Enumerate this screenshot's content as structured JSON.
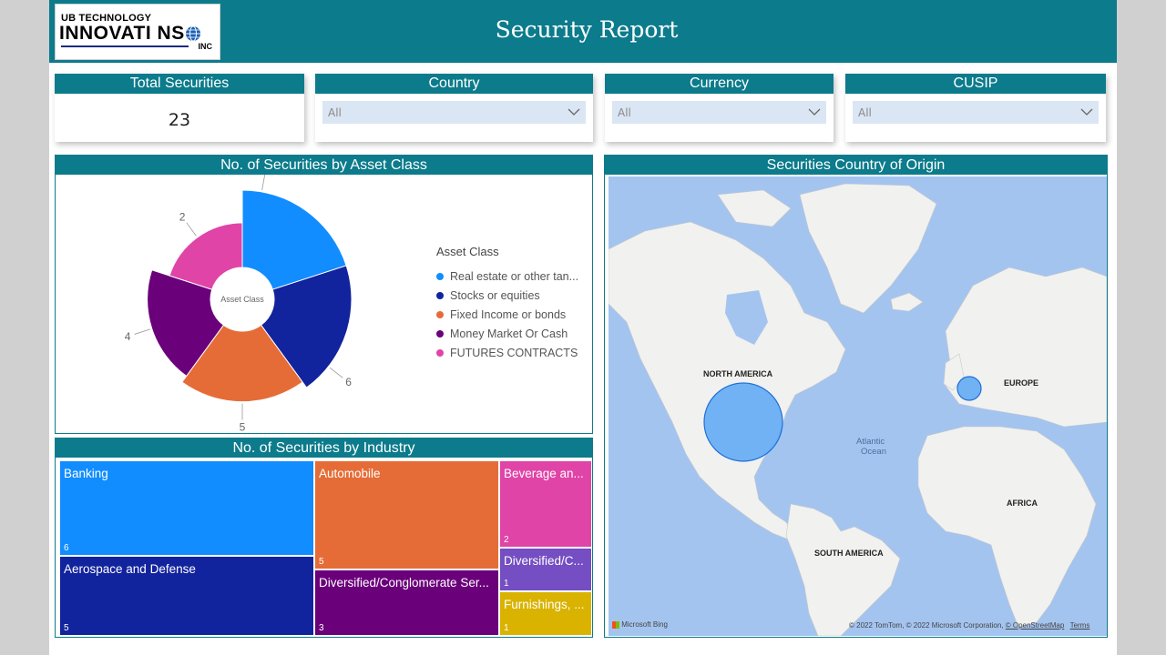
{
  "header": {
    "title": "Security Report",
    "logo": {
      "line1": "UB TECHNOLOGY",
      "line2": "INNOVATI  NS",
      "line3": "INC"
    }
  },
  "kpi": {
    "label": "Total Securities",
    "value": "23"
  },
  "filters": [
    {
      "label": "Country",
      "value": "All"
    },
    {
      "label": "Currency",
      "value": "All"
    },
    {
      "label": "CUSIP",
      "value": "All"
    }
  ],
  "asset_chart": {
    "title": "No. of Securities by Asset Class",
    "center_label": "Asset Class",
    "legend_title": "Asset Class",
    "legend": [
      {
        "name": "Real estate or other tan...",
        "color": "#118dff"
      },
      {
        "name": "Stocks or equities",
        "color": "#12239e"
      },
      {
        "name": "Fixed Income or bonds",
        "color": "#e66c37"
      },
      {
        "name": "Money Market Or Cash",
        "color": "#6b007b"
      },
      {
        "name": "FUTURES CONTRACTS",
        "color": "#e044a7"
      }
    ]
  },
  "chart_data": [
    {
      "type": "pie",
      "title": "No. of Securities by Asset Class",
      "categories": [
        "Real estate or other tan...",
        "Stocks or equities",
        "Fixed Income or bonds",
        "Money Market Or Cash",
        "FUTURES CONTRACTS"
      ],
      "values": [
        6,
        6,
        5,
        4,
        2
      ],
      "colors": [
        "#118dff",
        "#12239e",
        "#e66c37",
        "#6b007b",
        "#e044a7"
      ]
    },
    {
      "type": "treemap",
      "title": "No. of Securities by Industry",
      "categories": [
        "Banking",
        "Aerospace and Defense",
        "Automobile",
        "Diversified/Conglomerate Ser...",
        "Beverage an...",
        "Diversified/C...",
        "Furnishings, ..."
      ],
      "values": [
        6,
        5,
        5,
        3,
        2,
        1,
        1
      ]
    }
  ],
  "industry_chart": {
    "title": "No. of Securities by Industry",
    "tiles": [
      {
        "label": "Banking",
        "value": "6",
        "color": "#118dff"
      },
      {
        "label": "Aerospace and Defense",
        "value": "5",
        "color": "#12239e"
      },
      {
        "label": "Automobile",
        "value": "5",
        "color": "#e66c37"
      },
      {
        "label": "Diversified/Conglomerate Ser...",
        "value": "3",
        "color": "#6b007b"
      },
      {
        "label": "Beverage an...",
        "value": "2",
        "color": "#e044a7"
      },
      {
        "label": "Diversified/C...",
        "value": "1",
        "color": "#744ec2"
      },
      {
        "label": "Furnishings, ...",
        "value": "1",
        "color": "#d9b300"
      }
    ]
  },
  "map": {
    "title": "Securities Country of Origin",
    "labels": {
      "north_america": "NORTH AMERICA",
      "europe": "EUROPE",
      "africa": "AFRICA",
      "south_america": "SOUTH AMERICA",
      "ocean_1": "Atlantic",
      "ocean_2": "Ocean"
    },
    "bing": "Microsoft Bing",
    "copyright": "© 2022 TomTom, © 2022 Microsoft Corporation,",
    "osm": "© OpenStreetMap",
    "terms": "Terms"
  }
}
